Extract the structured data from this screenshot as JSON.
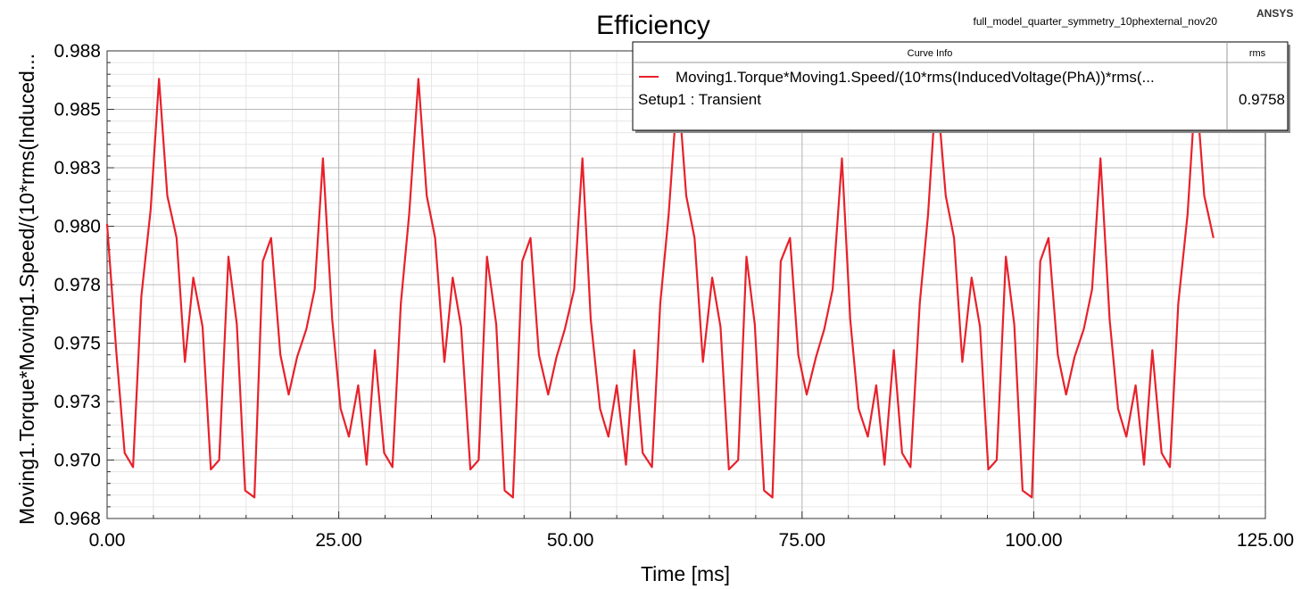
{
  "chart_data": {
    "type": "line",
    "title": "Efficiency",
    "project_label": "full_model_quarter_symmetry_10phexternal_nov20",
    "brand": "ANSYS",
    "xlabel": "Time [ms]",
    "ylabel": "Moving1.Torque*Moving1.Speed/(10*rms(Induced...",
    "xlim": [
      0,
      125
    ],
    "ylim": [
      0.968,
      0.988
    ],
    "x_ticks": [
      0,
      25,
      50,
      75,
      100,
      125
    ],
    "x_tick_labels": [
      "0.00",
      "25.00",
      "50.00",
      "75.00",
      "100.00",
      "125.00"
    ],
    "y_ticks": [
      0.968,
      0.9705,
      0.973,
      0.9755,
      0.978,
      0.9805,
      0.983,
      0.9855,
      0.988
    ],
    "y_tick_labels": [
      "0.968",
      "0.970",
      "0.973",
      "0.975",
      "0.978",
      "0.980",
      "0.983",
      "0.985",
      "0.988"
    ],
    "grid": true,
    "legend": {
      "placement": "top-right",
      "header_left": "Curve Info",
      "header_right": "rms",
      "series_label": "Moving1.Torque*Moving1.Speed/(10*rms(InducedVoltage(PhA))*rms(...",
      "setup_label": "Setup1 : Transient",
      "rms_value": "0.9758"
    },
    "series": [
      {
        "name": "Moving1.Torque*Moving1.Speed/(10*rms(InducedVoltage(PhA))*rms(...",
        "color": "#e8212b",
        "points": [
          [
            0.0,
            0.9806
          ],
          [
            1.0,
            0.9751
          ],
          [
            1.9,
            0.9708
          ],
          [
            2.8,
            0.9702
          ],
          [
            3.7,
            0.9775
          ],
          [
            4.7,
            0.9812
          ],
          [
            5.6,
            0.9868
          ],
          [
            6.5,
            0.9818
          ],
          [
            7.5,
            0.98
          ],
          [
            8.4,
            0.9747
          ],
          [
            9.3,
            0.9783
          ],
          [
            10.3,
            0.9762
          ],
          [
            11.2,
            0.9701
          ],
          [
            12.1,
            0.9705
          ],
          [
            13.1,
            0.9792
          ],
          [
            14.0,
            0.9763
          ],
          [
            14.9,
            0.9692
          ],
          [
            15.9,
            0.9689
          ],
          [
            16.8,
            0.979
          ],
          [
            17.7,
            0.98
          ],
          [
            18.7,
            0.975
          ],
          [
            19.6,
            0.9733
          ],
          [
            20.5,
            0.9749
          ],
          [
            21.5,
            0.9761
          ],
          [
            22.4,
            0.9778
          ],
          [
            23.3,
            0.9834
          ],
          [
            24.3,
            0.9765
          ],
          [
            25.2,
            0.9727
          ],
          [
            26.1,
            0.9715
          ],
          [
            27.1,
            0.9737
          ],
          [
            28.0,
            0.9703
          ],
          [
            28.9,
            0.9752
          ],
          [
            29.9,
            0.9708
          ],
          [
            30.8,
            0.9702
          ],
          [
            31.7,
            0.9772
          ],
          [
            32.6,
            0.981
          ],
          [
            33.6,
            0.9868
          ],
          [
            34.5,
            0.9818
          ],
          [
            35.4,
            0.98
          ],
          [
            36.4,
            0.9747
          ],
          [
            37.3,
            0.9783
          ],
          [
            38.2,
            0.9762
          ],
          [
            39.2,
            0.9701
          ],
          [
            40.1,
            0.9705
          ],
          [
            41.0,
            0.9792
          ],
          [
            42.0,
            0.9763
          ],
          [
            42.9,
            0.9692
          ],
          [
            43.8,
            0.9689
          ],
          [
            44.8,
            0.979
          ],
          [
            45.7,
            0.98
          ],
          [
            46.6,
            0.975
          ],
          [
            47.6,
            0.9733
          ],
          [
            48.5,
            0.9749
          ],
          [
            49.4,
            0.9761
          ],
          [
            50.4,
            0.9778
          ],
          [
            51.3,
            0.9834
          ],
          [
            52.2,
            0.9765
          ],
          [
            53.2,
            0.9727
          ],
          [
            54.1,
            0.9715
          ],
          [
            55.0,
            0.9737
          ],
          [
            56.0,
            0.9703
          ],
          [
            56.9,
            0.9752
          ],
          [
            57.8,
            0.9708
          ],
          [
            58.8,
            0.9702
          ],
          [
            59.7,
            0.9772
          ],
          [
            60.6,
            0.981
          ],
          [
            61.6,
            0.9866
          ],
          [
            62.5,
            0.9818
          ],
          [
            63.4,
            0.98
          ],
          [
            64.3,
            0.9747
          ],
          [
            65.3,
            0.9783
          ],
          [
            66.2,
            0.9762
          ],
          [
            67.1,
            0.9701
          ],
          [
            68.1,
            0.9705
          ],
          [
            69.0,
            0.9792
          ],
          [
            69.9,
            0.9763
          ],
          [
            70.9,
            0.9692
          ],
          [
            71.8,
            0.9689
          ],
          [
            72.7,
            0.979
          ],
          [
            73.7,
            0.98
          ],
          [
            74.6,
            0.975
          ],
          [
            75.5,
            0.9733
          ],
          [
            76.5,
            0.9749
          ],
          [
            77.4,
            0.9761
          ],
          [
            78.3,
            0.9778
          ],
          [
            79.3,
            0.9834
          ],
          [
            80.2,
            0.9765
          ],
          [
            81.1,
            0.9727
          ],
          [
            82.1,
            0.9715
          ],
          [
            83.0,
            0.9737
          ],
          [
            83.9,
            0.9703
          ],
          [
            84.9,
            0.9752
          ],
          [
            85.8,
            0.9708
          ],
          [
            86.7,
            0.9702
          ],
          [
            87.7,
            0.9772
          ],
          [
            88.6,
            0.981
          ],
          [
            89.5,
            0.9866
          ],
          [
            90.5,
            0.9818
          ],
          [
            91.4,
            0.98
          ],
          [
            92.3,
            0.9747
          ],
          [
            93.3,
            0.9783
          ],
          [
            94.2,
            0.9762
          ],
          [
            95.1,
            0.9701
          ],
          [
            96.0,
            0.9705
          ],
          [
            97.0,
            0.9792
          ],
          [
            97.9,
            0.9763
          ],
          [
            98.8,
            0.9692
          ],
          [
            99.8,
            0.9689
          ],
          [
            100.7,
            0.979
          ],
          [
            101.6,
            0.98
          ],
          [
            102.6,
            0.975
          ],
          [
            103.5,
            0.9733
          ],
          [
            104.4,
            0.9749
          ],
          [
            105.4,
            0.9761
          ],
          [
            106.3,
            0.9778
          ],
          [
            107.2,
            0.9834
          ],
          [
            108.2,
            0.9765
          ],
          [
            109.1,
            0.9727
          ],
          [
            110.0,
            0.9715
          ],
          [
            111.0,
            0.9737
          ],
          [
            111.9,
            0.9703
          ],
          [
            112.8,
            0.9752
          ],
          [
            113.8,
            0.9708
          ],
          [
            114.7,
            0.9702
          ],
          [
            115.6,
            0.9772
          ],
          [
            116.6,
            0.981
          ],
          [
            117.5,
            0.9866
          ],
          [
            118.4,
            0.9818
          ],
          [
            119.4,
            0.98
          ]
        ]
      }
    ]
  }
}
